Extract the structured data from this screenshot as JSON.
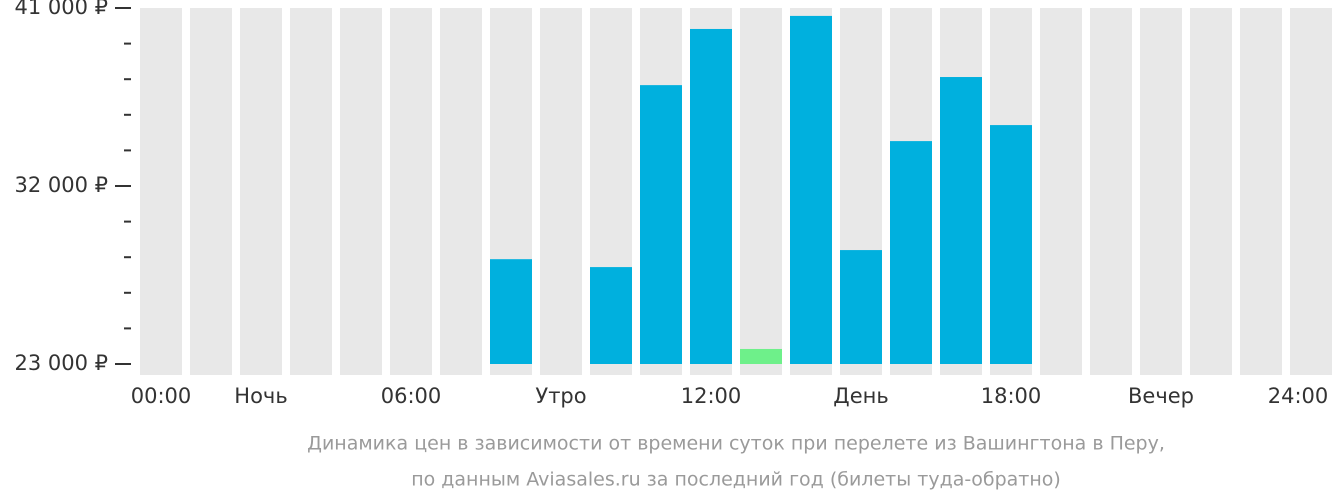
{
  "chart_data": {
    "type": "bar",
    "categories": [
      "00:00",
      null,
      "Ночь",
      null,
      null,
      "06:00",
      null,
      null,
      "Утро",
      null,
      null,
      "12:00",
      null,
      null,
      "День",
      null,
      null,
      "18:00",
      null,
      null,
      "Вечер",
      null,
      null,
      "24:00"
    ],
    "values": [
      null,
      null,
      null,
      null,
      null,
      null,
      null,
      28300,
      null,
      27900,
      37100,
      39940,
      23760,
      40600,
      28760,
      34270,
      37510,
      35080,
      null,
      null,
      null,
      null,
      null,
      null
    ],
    "bar_colors": [
      null,
      null,
      null,
      null,
      null,
      null,
      null,
      "#00b0de",
      null,
      "#00b0de",
      "#00b0de",
      "#00b0de",
      "#6ef08a",
      "#00b0de",
      "#00b0de",
      "#00b0de",
      "#00b0de",
      "#00b0de",
      null,
      null,
      null,
      null,
      null,
      null
    ],
    "background_color": "#e8e8e8",
    "ylim": [
      23000,
      41000
    ],
    "yticks": [
      {
        "value": 23000,
        "label": "23 000 ₽"
      },
      {
        "value": 32000,
        "label": "32 000 ₽"
      },
      {
        "value": 41000,
        "label": "41 000 ₽"
      }
    ],
    "minor_yticks": [
      24800,
      26600,
      28400,
      30200,
      33800,
      35600,
      37400,
      39200
    ],
    "caption": [
      "Динамика цен в зависимости от времени суток при перелете из Вашингтона в Перу,",
      "по данным Aviasales.ru за последний год (билеты туда-обратно)"
    ]
  }
}
